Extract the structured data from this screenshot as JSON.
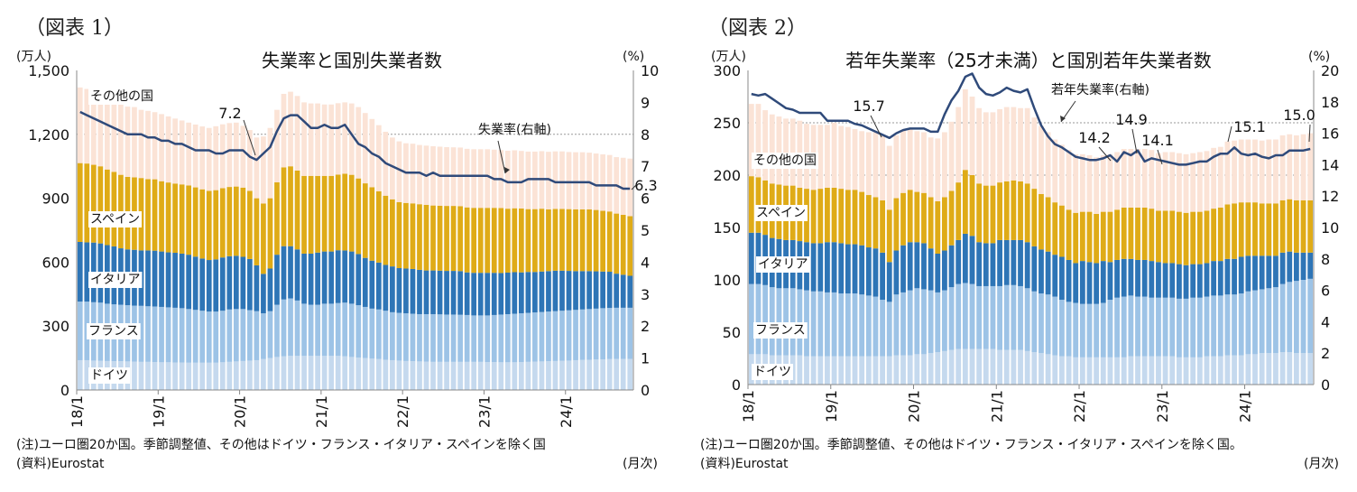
{
  "chart_data": [
    {
      "figure_label": "（図表 1）",
      "type": "bar",
      "stacked": true,
      "title": "失業率と国別失業者数",
      "ylabel": "(万人)",
      "y2label": "(%)",
      "ylim": [
        0,
        1500
      ],
      "yticks": [
        "0",
        "300",
        "600",
        "900",
        "1,200",
        "1,500"
      ],
      "y2lim": [
        0,
        10
      ],
      "y2ticks": [
        "0",
        "1",
        "2",
        "3",
        "4",
        "5",
        "6",
        "7",
        "8",
        "9",
        "10"
      ],
      "x_start": "2018/1",
      "x_frequency": "monthly",
      "xticks": [
        "18/1",
        "19/1",
        "20/1",
        "21/1",
        "22/1",
        "23/1",
        "24/1"
      ],
      "xlabel": "(月次)",
      "grid": "horizontal dotted at 1,200",
      "series": [
        {
          "name": "ドイツ",
          "color": "#c5d9ee",
          "values": [
            140,
            140,
            138,
            137,
            136,
            135,
            135,
            134,
            133,
            132,
            132,
            131,
            130,
            130,
            129,
            129,
            128,
            128,
            128,
            128,
            128,
            130,
            132,
            134,
            136,
            138,
            140,
            145,
            150,
            155,
            158,
            160,
            160,
            160,
            160,
            160,
            160,
            160,
            160,
            158,
            155,
            152,
            150,
            147,
            145,
            142,
            140,
            138,
            136,
            135,
            134,
            133,
            132,
            132,
            132,
            132,
            132,
            132,
            132,
            132,
            131,
            131,
            130,
            130,
            130,
            131,
            132,
            133,
            134,
            135,
            136,
            137,
            138,
            140,
            141,
            142,
            143,
            144,
            145,
            146,
            146,
            146
          ]
        },
        {
          "name": "フランス",
          "color": "#9dc3e6",
          "values": [
            275,
            275,
            274,
            273,
            269,
            267,
            265,
            264,
            263,
            263,
            261,
            261,
            260,
            258,
            257,
            255,
            252,
            248,
            244,
            240,
            240,
            242,
            246,
            246,
            244,
            237,
            230,
            215,
            220,
            245,
            267,
            270,
            260,
            245,
            240,
            240,
            245,
            245,
            248,
            252,
            250,
            246,
            240,
            235,
            233,
            230,
            225,
            224,
            224,
            223,
            222,
            223,
            224,
            223,
            222,
            222,
            221,
            220,
            218,
            218,
            219,
            221,
            224,
            226,
            228,
            229,
            230,
            231,
            232,
            233,
            234,
            235,
            236,
            236,
            237,
            238,
            239,
            240,
            240,
            240,
            240,
            240
          ]
        },
        {
          "name": "イタリア",
          "color": "#2e75b6",
          "values": [
            280,
            278,
            280,
            278,
            275,
            272,
            265,
            262,
            262,
            260,
            262,
            262,
            260,
            258,
            258,
            256,
            255,
            250,
            245,
            242,
            245,
            250,
            250,
            250,
            245,
            240,
            215,
            185,
            200,
            235,
            250,
            245,
            240,
            235,
            240,
            245,
            245,
            245,
            248,
            245,
            245,
            240,
            230,
            225,
            220,
            215,
            215,
            210,
            210,
            210,
            208,
            205,
            205,
            205,
            205,
            205,
            205,
            200,
            200,
            200,
            200,
            198,
            195,
            195,
            195,
            192,
            192,
            190,
            190,
            190,
            190,
            188,
            185,
            182,
            180,
            178,
            175,
            172,
            170,
            160,
            155,
            150
          ]
        },
        {
          "name": "スペイン",
          "color": "#dfab17",
          "values": [
            370,
            370,
            365,
            362,
            355,
            350,
            345,
            340,
            340,
            340,
            335,
            335,
            330,
            328,
            325,
            325,
            325,
            325,
            325,
            325,
            325,
            325,
            325,
            325,
            325,
            320,
            315,
            330,
            330,
            340,
            370,
            375,
            370,
            365,
            365,
            360,
            355,
            355,
            355,
            360,
            360,
            355,
            350,
            345,
            335,
            325,
            315,
            310,
            308,
            308,
            308,
            308,
            305,
            305,
            305,
            305,
            305,
            305,
            305,
            305,
            305,
            305,
            305,
            300,
            300,
            300,
            295,
            295,
            295,
            290,
            290,
            290,
            290,
            290,
            290,
            290,
            288,
            285,
            283,
            282,
            281,
            280
          ]
        },
        {
          "name": "その他の国",
          "color": "#fbe3d6",
          "values": [
            355,
            350,
            330,
            330,
            335,
            335,
            335,
            330,
            330,
            320,
            320,
            315,
            315,
            310,
            305,
            300,
            295,
            295,
            295,
            295,
            300,
            300,
            300,
            300,
            290,
            285,
            285,
            315,
            330,
            340,
            345,
            350,
            350,
            345,
            340,
            340,
            335,
            335,
            335,
            335,
            335,
            335,
            330,
            320,
            310,
            300,
            290,
            285,
            280,
            280,
            278,
            278,
            278,
            277,
            276,
            275,
            275,
            275,
            275,
            275,
            275,
            273,
            272,
            272,
            272,
            270,
            270,
            270,
            270,
            270,
            270,
            270,
            268,
            268,
            268,
            266,
            265,
            265,
            265,
            265,
            268,
            270
          ]
        }
      ],
      "line": {
        "name": "失業率(右軸)",
        "axis": "right",
        "color": "#2f4a7a",
        "values": [
          8.7,
          8.6,
          8.5,
          8.4,
          8.3,
          8.2,
          8.1,
          8.0,
          8.0,
          8.0,
          7.9,
          7.9,
          7.8,
          7.8,
          7.7,
          7.7,
          7.6,
          7.5,
          7.5,
          7.5,
          7.4,
          7.4,
          7.5,
          7.5,
          7.5,
          7.3,
          7.2,
          7.4,
          7.6,
          8.1,
          8.5,
          8.6,
          8.6,
          8.4,
          8.2,
          8.2,
          8.3,
          8.2,
          8.2,
          8.3,
          8.0,
          7.7,
          7.6,
          7.4,
          7.3,
          7.1,
          7.0,
          6.9,
          6.8,
          6.8,
          6.8,
          6.7,
          6.8,
          6.7,
          6.7,
          6.7,
          6.7,
          6.7,
          6.7,
          6.7,
          6.7,
          6.6,
          6.6,
          6.5,
          6.5,
          6.5,
          6.6,
          6.6,
          6.6,
          6.6,
          6.5,
          6.5,
          6.5,
          6.5,
          6.5,
          6.5,
          6.4,
          6.4,
          6.4,
          6.4,
          6.3,
          6.3
        ]
      },
      "annotations": [
        {
          "text": "7.2"
        },
        {
          "text": "6.3"
        }
      ],
      "note": "(注)ユーロ圏20か国。季節調整値、その他はドイツ・フランス・イタリア・スペインを除く国",
      "source": "(資料)Eurostat"
    },
    {
      "figure_label": "（図表 2）",
      "type": "bar",
      "stacked": true,
      "title": "若年失業率（25才未満）と国別若年失業者数",
      "ylabel": "(万人)",
      "y2label": "(%)",
      "ylim": [
        0,
        300
      ],
      "yticks": [
        "0",
        "50",
        "100",
        "150",
        "200",
        "250",
        "300"
      ],
      "y2lim": [
        0,
        20
      ],
      "y2ticks": [
        "0",
        "2",
        "4",
        "6",
        "8",
        "10",
        "12",
        "14",
        "16",
        "18",
        "20"
      ],
      "x_start": "2018/1",
      "x_frequency": "monthly",
      "xticks": [
        "18/1",
        "19/1",
        "20/1",
        "21/1",
        "22/1",
        "23/1",
        "24/1"
      ],
      "xlabel": "(月次)",
      "grid": "horizontal dotted at 200 and 250",
      "series": [
        {
          "name": "ドイツ",
          "color": "#c5d9ee",
          "values": [
            29,
            29,
            29,
            28,
            28,
            28,
            28,
            28,
            27,
            27,
            27,
            27,
            27,
            27,
            27,
            27,
            27,
            27,
            27,
            27,
            27,
            28,
            28,
            28,
            29,
            29,
            30,
            31,
            32,
            33,
            34,
            34,
            34,
            34,
            34,
            34,
            33,
            33,
            33,
            33,
            32,
            31,
            30,
            29,
            28,
            27,
            27,
            26,
            26,
            26,
            26,
            26,
            26,
            26,
            26,
            27,
            27,
            27,
            27,
            27,
            27,
            27,
            26,
            26,
            26,
            26,
            27,
            27,
            27,
            28,
            28,
            28,
            29,
            29,
            30,
            30,
            30,
            31,
            31,
            30,
            30,
            30
          ]
        },
        {
          "name": "フランス",
          "color": "#9dc3e6",
          "values": [
            67,
            67,
            66,
            65,
            64,
            64,
            64,
            63,
            63,
            62,
            62,
            61,
            61,
            60,
            60,
            60,
            59,
            58,
            57,
            54,
            52,
            58,
            60,
            62,
            63,
            62,
            60,
            57,
            58,
            60,
            62,
            63,
            62,
            60,
            60,
            60,
            61,
            62,
            62,
            61,
            60,
            58,
            57,
            57,
            56,
            54,
            52,
            52,
            51,
            51,
            51,
            52,
            55,
            57,
            58,
            58,
            57,
            57,
            56,
            56,
            56,
            56,
            56,
            56,
            57,
            57,
            57,
            58,
            58,
            58,
            58,
            59,
            60,
            61,
            61,
            62,
            63,
            65,
            67,
            69,
            70,
            71
          ]
        },
        {
          "name": "イタリア",
          "color": "#2e75b6",
          "values": [
            49,
            49,
            48,
            47,
            47,
            46,
            46,
            46,
            46,
            46,
            46,
            48,
            48,
            48,
            47,
            47,
            47,
            46,
            46,
            45,
            38,
            42,
            45,
            46,
            44,
            44,
            40,
            37,
            38,
            40,
            42,
            47,
            46,
            42,
            41,
            41,
            44,
            43,
            43,
            44,
            44,
            43,
            42,
            41,
            40,
            41,
            40,
            38,
            41,
            40,
            39,
            40,
            36,
            36,
            36,
            35,
            35,
            35,
            35,
            34,
            33,
            33,
            33,
            32,
            32,
            32,
            32,
            33,
            33,
            34,
            34,
            35,
            34,
            33,
            32,
            31,
            30,
            30,
            29,
            27,
            26,
            25
          ]
        },
        {
          "name": "スペイン",
          "color": "#dfab17",
          "values": [
            54,
            53,
            52,
            52,
            52,
            52,
            52,
            51,
            51,
            51,
            52,
            52,
            52,
            52,
            52,
            52,
            51,
            50,
            49,
            50,
            50,
            50,
            50,
            50,
            48,
            48,
            49,
            50,
            51,
            52,
            55,
            61,
            58,
            56,
            55,
            55,
            55,
            56,
            57,
            56,
            56,
            55,
            53,
            52,
            50,
            49,
            48,
            48,
            47,
            48,
            47,
            47,
            48,
            48,
            49,
            49,
            50,
            50,
            50,
            49,
            50,
            50,
            50,
            50,
            50,
            50,
            50,
            50,
            51,
            52,
            53,
            52,
            51,
            51,
            50,
            50,
            50,
            50,
            50,
            50,
            50,
            50
          ]
        },
        {
          "name": "その他の国",
          "color": "#fbe3d6",
          "values": [
            69,
            70,
            67,
            66,
            65,
            64,
            64,
            64,
            62,
            62,
            61,
            60,
            62,
            60,
            60,
            58,
            58,
            60,
            62,
            62,
            61,
            60,
            60,
            59,
            58,
            58,
            57,
            60,
            62,
            66,
            72,
            77,
            75,
            72,
            70,
            70,
            70,
            71,
            70,
            70,
            72,
            68,
            65,
            62,
            60,
            58,
            57,
            56,
            55,
            54,
            54,
            54,
            55,
            55,
            56,
            56,
            56,
            56,
            56,
            55,
            56,
            56,
            56,
            56,
            56,
            57,
            57,
            58,
            58,
            60,
            60,
            60,
            60,
            60,
            60,
            61,
            61,
            62,
            62,
            62,
            63,
            64
          ]
        }
      ],
      "line": {
        "name": "若年失業率(右軸)",
        "axis": "right",
        "color": "#2f4a7a",
        "values": [
          18.5,
          18.4,
          18.5,
          18.2,
          17.9,
          17.6,
          17.5,
          17.3,
          17.3,
          17.3,
          17.3,
          16.8,
          16.8,
          16.8,
          16.8,
          16.6,
          16.5,
          16.3,
          16.1,
          15.9,
          15.7,
          16.0,
          16.2,
          16.3,
          16.3,
          16.3,
          16.1,
          16.1,
          17.2,
          18.1,
          18.7,
          19.6,
          19.8,
          18.9,
          18.5,
          18.4,
          18.6,
          18.9,
          18.7,
          18.6,
          18.8,
          17.6,
          16.5,
          15.8,
          15.3,
          15.1,
          14.8,
          14.5,
          14.4,
          14.3,
          14.3,
          14.4,
          14.6,
          14.2,
          14.8,
          14.6,
          14.9,
          14.2,
          14.4,
          14.3,
          14.2,
          14.1,
          14.0,
          14.0,
          14.1,
          14.2,
          14.2,
          14.5,
          14.7,
          14.7,
          15.1,
          14.7,
          14.6,
          14.7,
          14.5,
          14.4,
          14.6,
          14.6,
          14.9,
          14.9,
          14.9,
          15.0
        ]
      },
      "annotations": [
        {
          "text": "15.7"
        },
        {
          "text": "14.2"
        },
        {
          "text": "14.9"
        },
        {
          "text": "14.1"
        },
        {
          "text": "15.1"
        },
        {
          "text": "15.0"
        }
      ],
      "note": "(注)ユーロ圏20か国。季節調整値、その他はドイツ・フランス・イタリア・スペインを除く国。",
      "source": "(資料)Eurostat"
    }
  ]
}
